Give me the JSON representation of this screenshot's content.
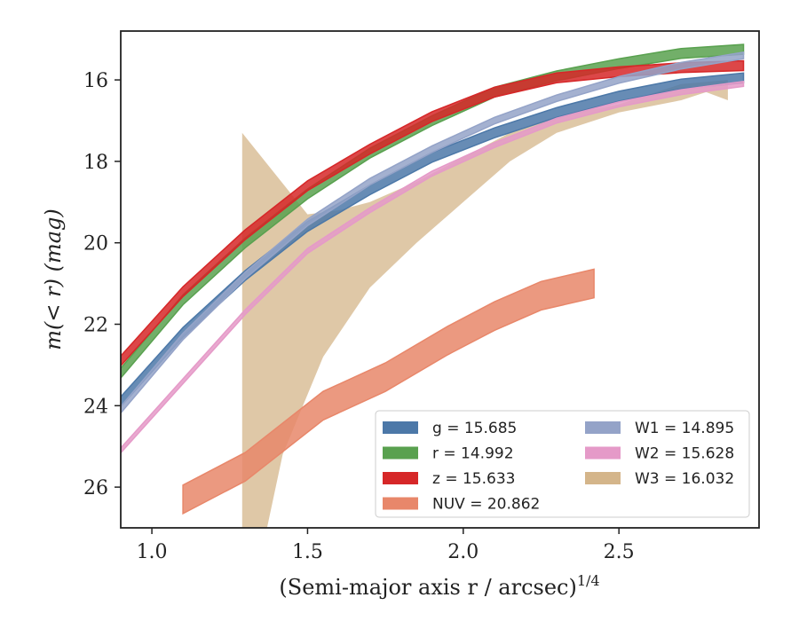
{
  "chart_data": {
    "type": "line",
    "xlabel": "(Semi-major axis r / arcsec)",
    "xlabel_superscript": "1/4",
    "ylabel": "m(< r) (mag)",
    "xlim": [
      0.9,
      2.95
    ],
    "ylim": [
      27.0,
      14.8
    ],
    "y_inverted": true,
    "x_ticks": [
      "1.0",
      "1.5",
      "2.0",
      "2.5"
    ],
    "y_ticks": [
      "16",
      "18",
      "20",
      "22",
      "24",
      "26"
    ],
    "grid": false,
    "legend_position": "lower-right",
    "legend_columns": 2,
    "series": [
      {
        "name": "g = 15.685",
        "color": "#4c78a8",
        "band_width": 0.12,
        "x": [
          0.9,
          1.1,
          1.3,
          1.5,
          1.7,
          1.9,
          2.1,
          2.3,
          2.5,
          2.7,
          2.9
        ],
        "y": [
          23.9,
          22.2,
          20.8,
          19.6,
          18.7,
          17.9,
          17.3,
          16.8,
          16.4,
          16.1,
          15.95
        ]
      },
      {
        "name": "r = 14.992",
        "color": "#59a14f",
        "band_width": 0.12,
        "x": [
          0.9,
          1.1,
          1.3,
          1.5,
          1.7,
          1.9,
          2.1,
          2.3,
          2.5,
          2.7,
          2.9
        ],
        "y": [
          23.2,
          21.4,
          20.0,
          18.8,
          17.8,
          17.0,
          16.3,
          15.9,
          15.6,
          15.35,
          15.25
        ]
      },
      {
        "name": "z = 15.633",
        "color": "#d62728",
        "band_width": 0.12,
        "x": [
          0.9,
          1.1,
          1.3,
          1.5,
          1.7,
          1.9,
          2.1,
          2.3,
          2.5,
          2.7,
          2.9
        ],
        "y": [
          22.9,
          21.2,
          19.8,
          18.6,
          17.7,
          16.9,
          16.3,
          15.95,
          15.8,
          15.7,
          15.65
        ]
      },
      {
        "name": "NUV = 20.862",
        "color": "#e8876a",
        "band_width": 0.35,
        "x": [
          1.1,
          1.3,
          1.55,
          1.75,
          1.95,
          2.1,
          2.25,
          2.42
        ],
        "y": [
          26.3,
          25.5,
          24.0,
          23.3,
          22.4,
          21.8,
          21.3,
          21.0
        ]
      },
      {
        "name": "W1 = 14.895",
        "color": "#94a3c8",
        "band_width": 0.08,
        "x": [
          0.9,
          1.1,
          1.3,
          1.5,
          1.7,
          1.9,
          2.1,
          2.3,
          2.5,
          2.7,
          2.9
        ],
        "y": [
          24.1,
          22.3,
          20.8,
          19.5,
          18.5,
          17.7,
          17.0,
          16.45,
          16.0,
          15.65,
          15.4
        ]
      },
      {
        "name": "W2 = 15.628",
        "color": "#e59ac8",
        "band_width": 0.06,
        "x": [
          0.9,
          1.1,
          1.3,
          1.5,
          1.7,
          1.9,
          2.1,
          2.3,
          2.5,
          2.7,
          2.9
        ],
        "y": [
          25.1,
          23.4,
          21.7,
          20.2,
          19.2,
          18.3,
          17.6,
          17.0,
          16.6,
          16.3,
          16.1
        ]
      },
      {
        "name": "W3 = 16.032",
        "color": "#d4b58a",
        "band_upper": {
          "x": [
            1.29,
            1.5,
            1.6,
            1.7,
            1.85,
            2.0,
            2.15,
            2.3,
            2.5,
            2.7,
            2.85
          ],
          "y": [
            17.3,
            19.3,
            19.2,
            19.0,
            18.5,
            17.9,
            17.3,
            16.9,
            16.6,
            16.1,
            16.0
          ]
        },
        "band_lower": {
          "x": [
            1.29,
            1.37,
            1.42,
            1.55,
            1.7,
            1.85,
            2.0,
            2.15,
            2.3,
            2.5,
            2.7,
            2.78,
            2.85
          ],
          "y": [
            27.0,
            27.0,
            25.2,
            22.8,
            21.1,
            20.0,
            19.0,
            18.0,
            17.3,
            16.8,
            16.5,
            16.3,
            16.5
          ]
        }
      }
    ]
  }
}
